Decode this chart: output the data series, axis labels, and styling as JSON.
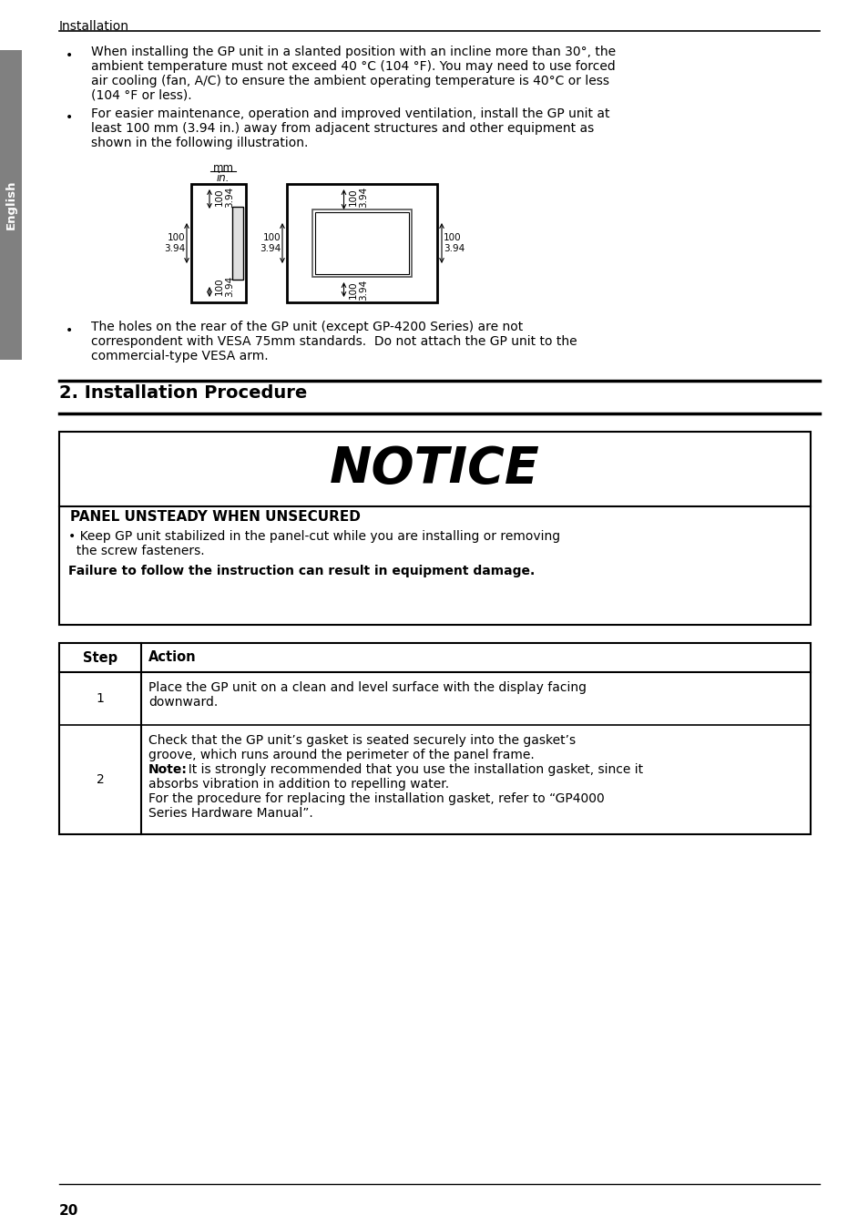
{
  "bg_color": "#ffffff",
  "tab_label": "English",
  "header_text": "Installation",
  "bullet1_line1": "When installing the GP unit in a slanted position with an incline more than 30°, the",
  "bullet1_line2": "ambient temperature must not exceed 40 °C (104 °F). You may need to use forced",
  "bullet1_line3": "air cooling (fan, A/C) to ensure the ambient operating temperature is 40°C or less",
  "bullet1_line4": "(104 °F or less).",
  "bullet2_line1": "For easier maintenance, operation and improved ventilation, install the GP unit at",
  "bullet2_line2": "least 100 mm (3.94 in.) away from adjacent structures and other equipment as",
  "bullet2_line3": "shown in the following illustration.",
  "bullet3_line1": "The holes on the rear of the GP unit (except GP-4200 Series) are not",
  "bullet3_line2": "correspondent with VESA 75mm standards.  Do not attach the GP unit to the",
  "bullet3_line3": "commercial-type VESA arm.",
  "section_title": "2. Installation Procedure",
  "notice_title": "NOTICE",
  "notice_subtitle": "PANEL UNSTEADY WHEN UNSECURED",
  "notice_body1": "• Keep GP unit stabilized in the panel-cut while you are installing or removing",
  "notice_body2": "  the screw fasteners.",
  "notice_footer": "Failure to follow the instruction can result in equipment damage.",
  "table_col1_header": "Step",
  "table_col2_header": "Action",
  "table_row1_step": "1",
  "table_row1_action1": "Place the GP unit on a clean and level surface with the display facing",
  "table_row1_action2": "downward.",
  "table_row2_step": "2",
  "table_row2_action1": "Check that the GP unit’s gasket is seated securely into the gasket’s",
  "table_row2_action2": "groove, which runs around the perimeter of the panel frame.",
  "table_row2_note_bold": "Note:",
  "table_row2_note_text": "  It is strongly recommended that you use the installation gasket, since it",
  "table_row2_action4": "absorbs vibration in addition to repelling water.",
  "table_row2_action5": "For the procedure for replacing the installation gasket, refer to “GP4000",
  "table_row2_action6": "Series Hardware Manual”.",
  "page_number": "20",
  "sidebar_color": "#808080",
  "text_color": "#000000"
}
